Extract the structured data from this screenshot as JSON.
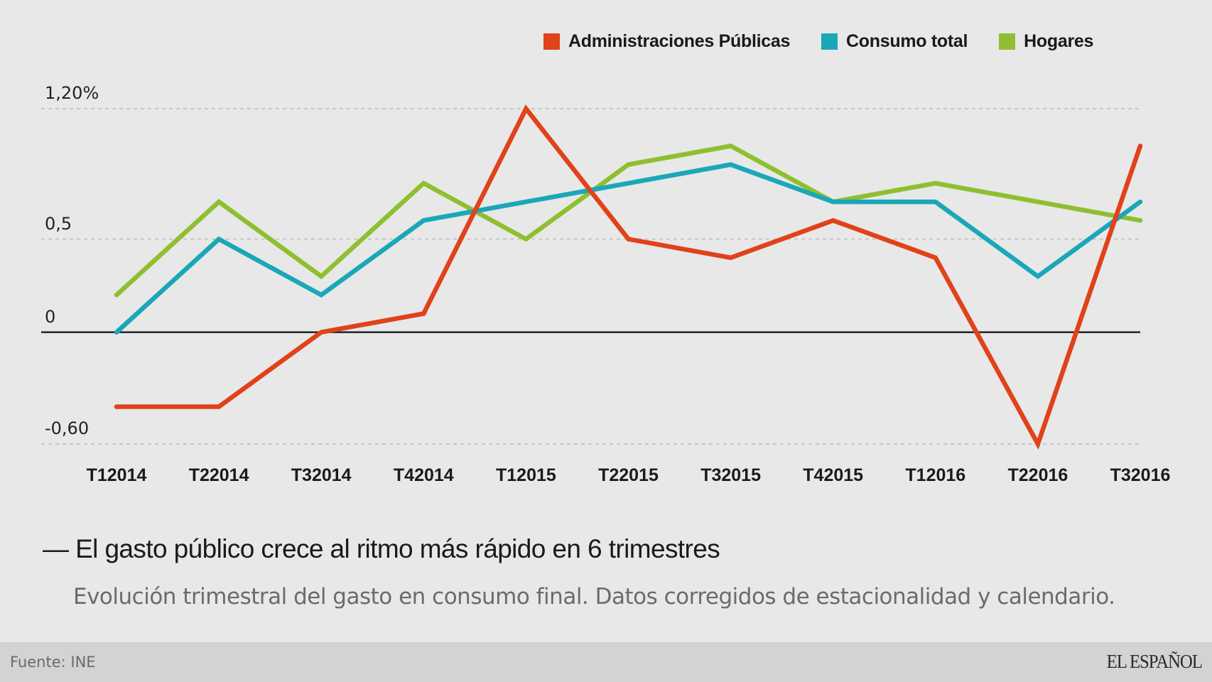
{
  "chart_data": {
    "type": "line",
    "title": "— El gasto público crece al ritmo más rápido en 6 trimestres",
    "subtitle": "Evolución trimestral del gasto en consumo final. Datos corregidos de estacionalidad y calendario.",
    "xlabel": "",
    "ylabel": "",
    "categories": [
      "T12014",
      "T22014",
      "T32014",
      "T42014",
      "T12015",
      "T22015",
      "T32015",
      "T42015",
      "T12016",
      "T22016",
      "T32016"
    ],
    "ylim": [
      -0.6,
      1.2
    ],
    "yticks": [
      {
        "value": 1.2,
        "label": "1,20%",
        "line": "dashed"
      },
      {
        "value": 0.5,
        "label": "0,5",
        "line": "dashed"
      },
      {
        "value": 0,
        "label": "0",
        "line": "solid"
      },
      {
        "value": -0.6,
        "label": "-0,60",
        "line": "dashed"
      }
    ],
    "legend_position": "top-right",
    "series": [
      {
        "name": "Administraciones Públicas",
        "color": "#e0421a",
        "values": [
          -0.4,
          -0.4,
          0.0,
          0.1,
          1.2,
          0.5,
          0.4,
          0.6,
          0.4,
          -0.6,
          1.0
        ]
      },
      {
        "name": "Consumo total",
        "color": "#1aa7b8",
        "values": [
          0.0,
          0.5,
          0.2,
          0.6,
          0.7,
          0.8,
          0.9,
          0.7,
          0.7,
          0.3,
          0.7
        ]
      },
      {
        "name": "Hogares",
        "color": "#8fbf30",
        "values": [
          0.2,
          0.7,
          0.3,
          0.8,
          0.5,
          0.9,
          1.0,
          0.7,
          0.8,
          0.7,
          0.6
        ]
      }
    ]
  },
  "footer": {
    "source": "Fuente: INE",
    "brand": "EL ESPAÑOL"
  }
}
